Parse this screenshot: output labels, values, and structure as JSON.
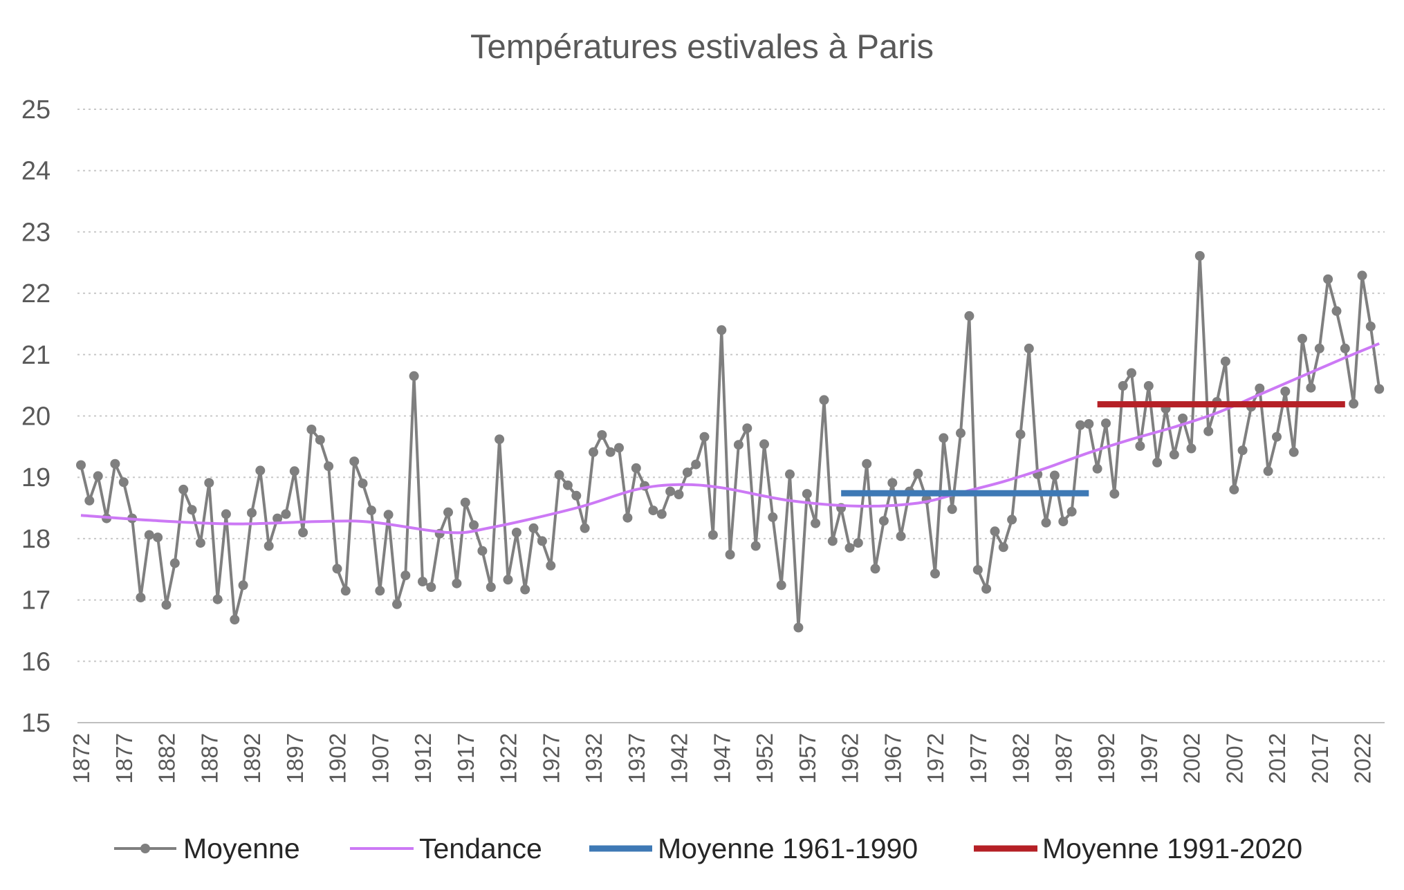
{
  "chart_data": {
    "type": "line",
    "title": "Températures estivales à Paris",
    "xlabel": "",
    "ylabel": "",
    "ylim": [
      15,
      25
    ],
    "yticks": [
      "15",
      "16",
      "17",
      "18",
      "19",
      "20",
      "21",
      "22",
      "23",
      "24",
      "25"
    ],
    "grid": true,
    "legend_position": "bottom",
    "x_start": 1872,
    "x_end": 2024,
    "xtick_labels": [
      "1872",
      "1877",
      "1882",
      "1887",
      "1892",
      "1897",
      "1902",
      "1907",
      "1912",
      "1917",
      "1922",
      "1927",
      "1932",
      "1937",
      "1942",
      "1947",
      "1952",
      "1957",
      "1962",
      "1967",
      "1972",
      "1977",
      "1982",
      "1987",
      "1992",
      "1997",
      "2002",
      "2007",
      "2012",
      "2017",
      "2022"
    ],
    "series": [
      {
        "name": "Moyenne",
        "color": "#7f7f7f",
        "marker": "circle",
        "values": [
          19.2,
          18.62,
          19.02,
          18.33,
          19.22,
          18.92,
          18.33,
          17.04,
          18.06,
          18.02,
          16.92,
          17.6,
          18.8,
          18.47,
          17.93,
          18.91,
          17.01,
          18.4,
          16.68,
          17.24,
          18.42,
          19.11,
          17.88,
          18.33,
          18.4,
          19.1,
          18.1,
          19.78,
          19.61,
          19.18,
          17.51,
          17.15,
          19.26,
          18.9,
          18.46,
          17.15,
          18.39,
          16.93,
          17.4,
          20.65,
          17.3,
          17.21,
          18.08,
          18.43,
          17.27,
          18.59,
          18.22,
          17.8,
          17.21,
          19.62,
          17.33,
          18.1,
          17.17,
          18.17,
          17.96,
          17.56,
          19.04,
          18.87,
          18.7,
          18.17,
          19.41,
          19.69,
          19.41,
          19.48,
          18.34,
          19.15,
          18.86,
          18.46,
          18.4,
          18.77,
          18.72,
          19.08,
          19.21,
          19.66,
          18.06,
          21.4,
          17.74,
          19.53,
          19.8,
          17.88,
          19.54,
          18.35,
          17.24,
          19.05,
          16.55,
          18.73,
          18.25,
          20.26,
          17.96,
          18.5,
          17.85,
          17.93,
          19.22,
          17.51,
          18.29,
          18.91,
          18.04,
          18.77,
          19.06,
          18.64,
          17.43,
          19.64,
          18.48,
          19.72,
          21.63,
          17.49,
          17.18,
          18.12,
          17.86,
          18.31,
          19.7,
          21.1,
          19.05,
          18.26,
          19.03,
          18.28,
          18.44,
          19.85,
          19.87,
          19.14,
          19.88,
          18.73,
          20.49,
          20.7,
          19.51,
          20.49,
          19.24,
          20.12,
          19.37,
          19.96,
          19.47,
          22.61,
          19.75,
          20.23,
          20.89,
          18.8,
          19.44,
          20.15,
          20.45,
          19.1,
          19.66,
          20.4,
          19.41,
          21.26,
          20.46,
          21.1,
          22.23,
          21.71,
          21.1,
          20.2,
          22.29,
          21.46,
          20.44
        ]
      },
      {
        "name": "Tendance",
        "color": "#cc79f5",
        "control_points": [
          [
            1872,
            18.38
          ],
          [
            1880,
            18.3
          ],
          [
            1890,
            18.24
          ],
          [
            1900,
            18.28
          ],
          [
            1906,
            18.27
          ],
          [
            1915,
            18.1
          ],
          [
            1920,
            18.18
          ],
          [
            1930,
            18.5
          ],
          [
            1937,
            18.8
          ],
          [
            1942,
            18.88
          ],
          [
            1947,
            18.83
          ],
          [
            1955,
            18.62
          ],
          [
            1963,
            18.53
          ],
          [
            1970,
            18.58
          ],
          [
            1975,
            18.75
          ],
          [
            1980,
            18.93
          ],
          [
            1985,
            19.15
          ],
          [
            1990,
            19.4
          ],
          [
            1995,
            19.62
          ],
          [
            2000,
            19.82
          ],
          [
            2005,
            20.05
          ],
          [
            2010,
            20.35
          ],
          [
            2015,
            20.65
          ],
          [
            2020,
            20.95
          ],
          [
            2024,
            21.18
          ]
        ]
      },
      {
        "name": "Moyenne 1961-1990",
        "color": "#3e79b5",
        "x_range": [
          1961,
          1990
        ],
        "value": 18.74
      },
      {
        "name": "Moyenne 1991-2020",
        "color": "#b52026",
        "x_range": [
          1991,
          2020
        ],
        "value": 20.19
      }
    ]
  }
}
